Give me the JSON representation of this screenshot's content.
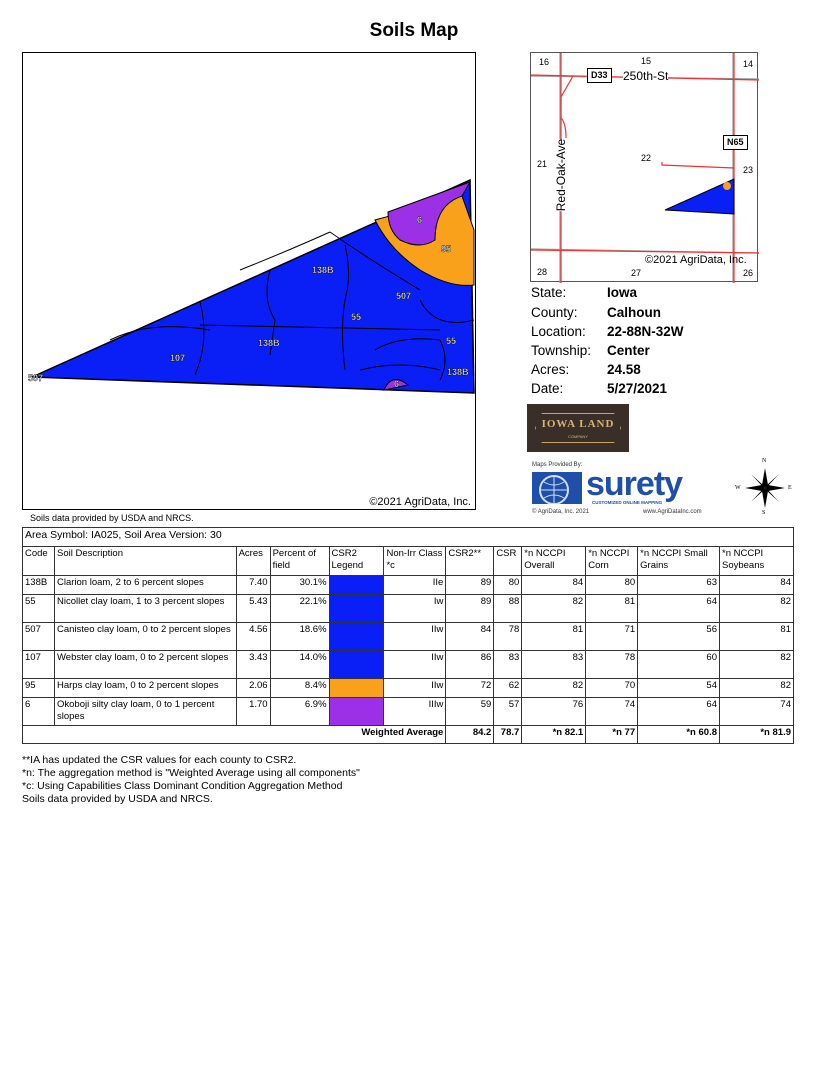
{
  "title": "Soils Map",
  "main_map": {
    "copyright": "©2021 AgriData, Inc.",
    "source_note": "Soils data provided by USDA and NRCS.",
    "labels": [
      "6",
      "95",
      "138B",
      "507",
      "55",
      "138B",
      "107",
      "55",
      "138B",
      "507",
      "6"
    ]
  },
  "inset_map": {
    "sections": [
      "16",
      "15",
      "14",
      "21",
      "22",
      "23",
      "28",
      "27",
      "26"
    ],
    "roads": {
      "d33": "D33",
      "street": "250th-St",
      "n65": "N65",
      "avenue": "Red-Oak-Ave"
    },
    "copyright": "©2021 AgriData, Inc."
  },
  "info": [
    {
      "k": "State:",
      "v": "Iowa"
    },
    {
      "k": "County:",
      "v": "Calhoun"
    },
    {
      "k": "Location:",
      "v": "22-88N-32W"
    },
    {
      "k": "Township:",
      "v": "Center"
    },
    {
      "k": "Acres:",
      "v": "24.58"
    },
    {
      "k": "Date:",
      "v": "5/27/2021"
    }
  ],
  "logos": {
    "iowa_land": "IOWA LAND",
    "iowa_land_sub": "COMPANY",
    "maps_provided": "Maps Provided By:",
    "surety": "surety",
    "surety_tag": "CUSTOMIZED ONLINE MAPPING",
    "agridata": "© AgriData, Inc. 2021",
    "url": "www.AgriDataInc.com",
    "compass": {
      "n": "N",
      "s": "S",
      "e": "E",
      "w": "W"
    }
  },
  "colors": {
    "blue": "#0a1ff5",
    "orange": "#f9a11b",
    "purple": "#9b30e6"
  },
  "table": {
    "area": "Area Symbol: IA025, Soil Area Version: 30",
    "headers": [
      "Code",
      "Soil Description",
      "Acres",
      "Percent of field",
      "CSR2 Legend",
      "Non-Irr Class *c",
      "CSR2**",
      "CSR",
      "*n NCCPI Overall",
      "*n NCCPI Corn",
      "*n NCCPI Small Grains",
      "*n NCCPI Soybeans"
    ],
    "rows": [
      {
        "code": "138B",
        "desc": "Clarion loam, 2 to 6 percent slopes",
        "acres": "7.40",
        "pct": "30.1%",
        "color": "#0a1ff5",
        "cls": "IIe",
        "csr2": "89",
        "csr": "80",
        "overall": "84",
        "corn": "80",
        "small": "63",
        "soy": "84"
      },
      {
        "code": "55",
        "desc": "Nicollet clay loam, 1 to 3 percent slopes",
        "acres": "5.43",
        "pct": "22.1%",
        "color": "#0a1ff5",
        "cls": "Iw",
        "csr2": "89",
        "csr": "88",
        "overall": "82",
        "corn": "81",
        "small": "64",
        "soy": "82"
      },
      {
        "code": "507",
        "desc": "Canisteo clay loam, 0 to 2 percent slopes",
        "acres": "4.56",
        "pct": "18.6%",
        "color": "#0a1ff5",
        "cls": "IIw",
        "csr2": "84",
        "csr": "78",
        "overall": "81",
        "corn": "71",
        "small": "56",
        "soy": "81"
      },
      {
        "code": "107",
        "desc": "Webster clay loam, 0 to 2 percent slopes",
        "acres": "3.43",
        "pct": "14.0%",
        "color": "#0a1ff5",
        "cls": "IIw",
        "csr2": "86",
        "csr": "83",
        "overall": "83",
        "corn": "78",
        "small": "60",
        "soy": "82"
      },
      {
        "code": "95",
        "desc": "Harps clay loam, 0 to 2 percent slopes",
        "acres": "2.06",
        "pct": "8.4%",
        "color": "#f9a11b",
        "cls": "IIw",
        "csr2": "72",
        "csr": "62",
        "overall": "82",
        "corn": "70",
        "small": "54",
        "soy": "82"
      },
      {
        "code": "6",
        "desc": "Okoboji silty clay loam, 0 to 1 percent slopes",
        "acres": "1.70",
        "pct": "6.9%",
        "color": "#9b30e6",
        "cls": "IIIw",
        "csr2": "59",
        "csr": "57",
        "overall": "76",
        "corn": "74",
        "small": "64",
        "soy": "74"
      }
    ],
    "weighted": {
      "label": "Weighted Average",
      "csr2": "84.2",
      "csr": "78.7",
      "overall": "*n 82.1",
      "corn": "*n 77",
      "small": "*n 60.8",
      "soy": "*n 81.9"
    }
  },
  "notes": [
    "**IA has updated the CSR values for each county to CSR2.",
    "*n: The aggregation method is \"Weighted Average using all components\"",
    "*c: Using Capabilities Class Dominant Condition Aggregation Method",
    "Soils data provided by USDA and NRCS."
  ]
}
